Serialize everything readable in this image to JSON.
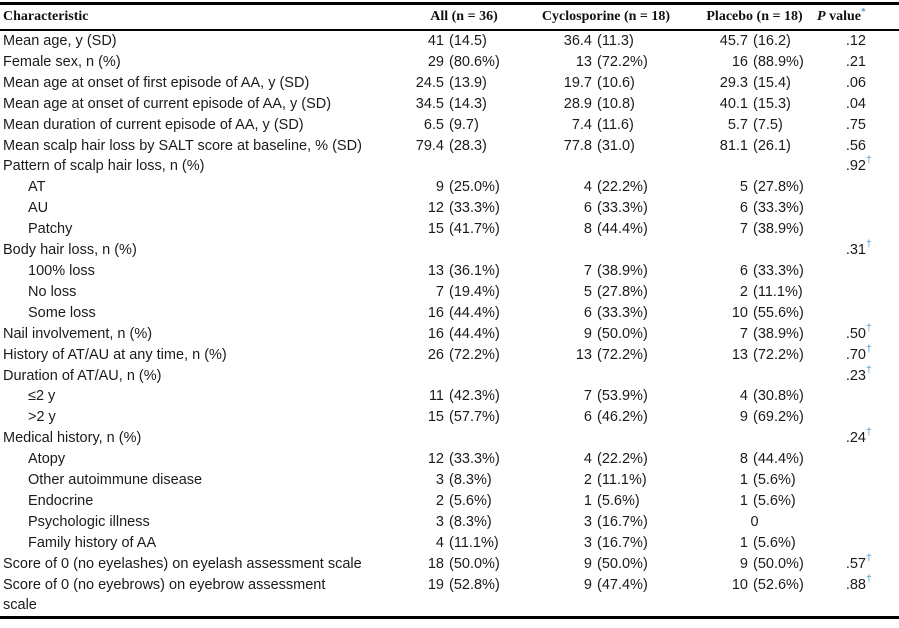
{
  "table": {
    "accent_color": "#4f9bce",
    "dagger_marker": "†",
    "header": {
      "characteristic": "Characteristic",
      "all": "All (n = 36)",
      "cyclosporine": "Cyclosporine (n = 18)",
      "placebo": "Placebo (n = 18)",
      "p_label_italic": "P",
      "p_label_rest": " value",
      "p_footnote_marker": "*"
    },
    "rows": [
      {
        "label": "Mean age, y (SD)",
        "indent": 0,
        "all": [
          "41",
          "(14.5)"
        ],
        "cyclo": [
          "36.4",
          "(11.3)"
        ],
        "placebo": [
          "45.7",
          "(16.2)"
        ],
        "p": ".12",
        "dagger": false
      },
      {
        "label": "Female sex, n (%)",
        "indent": 0,
        "all": [
          "29",
          "(80.6%)"
        ],
        "cyclo": [
          "13",
          "(72.2%)"
        ],
        "placebo": [
          "16",
          "(88.9%)"
        ],
        "p": ".21",
        "dagger": false
      },
      {
        "label": "Mean age at onset of first episode of AA, y (SD)",
        "indent": 0,
        "all": [
          "24.5",
          "(13.9)"
        ],
        "cyclo": [
          "19.7",
          "(10.6)"
        ],
        "placebo": [
          "29.3",
          "(15.4)"
        ],
        "p": ".06",
        "dagger": false
      },
      {
        "label": "Mean age at onset of current episode of AA, y (SD)",
        "indent": 0,
        "all": [
          "34.5",
          "(14.3)"
        ],
        "cyclo": [
          "28.9",
          "(10.8)"
        ],
        "placebo": [
          "40.1",
          "(15.3)"
        ],
        "p": ".04",
        "dagger": false
      },
      {
        "label": "Mean duration of current episode of AA, y (SD)",
        "indent": 0,
        "all": [
          "6.5",
          "(9.7)"
        ],
        "cyclo": [
          "7.4",
          "(11.6)"
        ],
        "placebo": [
          "5.7",
          "(7.5)"
        ],
        "p": ".75",
        "dagger": false
      },
      {
        "label": "Mean scalp hair loss by SALT score at baseline, % (SD)",
        "indent": 0,
        "all": [
          "79.4",
          "(28.3)"
        ],
        "cyclo": [
          "77.8",
          "(31.0)"
        ],
        "placebo": [
          "81.1",
          "(26.1)"
        ],
        "p": ".56",
        "dagger": false
      },
      {
        "label": "Pattern of scalp hair loss, n (%)",
        "indent": 0,
        "all": [
          "",
          ""
        ],
        "cyclo": [
          "",
          ""
        ],
        "placebo": [
          "",
          ""
        ],
        "p": ".92",
        "dagger": true
      },
      {
        "label": "AT",
        "indent": 1,
        "all": [
          "9",
          "(25.0%)"
        ],
        "cyclo": [
          "4",
          "(22.2%)"
        ],
        "placebo": [
          "5",
          "(27.8%)"
        ],
        "p": "",
        "dagger": false
      },
      {
        "label": "AU",
        "indent": 1,
        "all": [
          "12",
          "(33.3%)"
        ],
        "cyclo": [
          "6",
          "(33.3%)"
        ],
        "placebo": [
          "6",
          "(33.3%)"
        ],
        "p": "",
        "dagger": false
      },
      {
        "label": "Patchy",
        "indent": 1,
        "all": [
          "15",
          "(41.7%)"
        ],
        "cyclo": [
          "8",
          "(44.4%)"
        ],
        "placebo": [
          "7",
          "(38.9%)"
        ],
        "p": "",
        "dagger": false
      },
      {
        "label": "Body hair loss, n (%)",
        "indent": 0,
        "all": [
          "",
          ""
        ],
        "cyclo": [
          "",
          ""
        ],
        "placebo": [
          "",
          ""
        ],
        "p": ".31",
        "dagger": true
      },
      {
        "label": "100% loss",
        "indent": 1,
        "all": [
          "13",
          "(36.1%)"
        ],
        "cyclo": [
          "7",
          "(38.9%)"
        ],
        "placebo": [
          "6",
          "(33.3%)"
        ],
        "p": "",
        "dagger": false
      },
      {
        "label": "No loss",
        "indent": 1,
        "all": [
          "7",
          "(19.4%)"
        ],
        "cyclo": [
          "5",
          "(27.8%)"
        ],
        "placebo": [
          "2",
          "(11.1%)"
        ],
        "p": "",
        "dagger": false
      },
      {
        "label": "Some loss",
        "indent": 1,
        "all": [
          "16",
          "(44.4%)"
        ],
        "cyclo": [
          "6",
          "(33.3%)"
        ],
        "placebo": [
          "10",
          "(55.6%)"
        ],
        "p": "",
        "dagger": false
      },
      {
        "label": "Nail involvement, n (%)",
        "indent": 0,
        "all": [
          "16",
          "(44.4%)"
        ],
        "cyclo": [
          "9",
          "(50.0%)"
        ],
        "placebo": [
          "7",
          "(38.9%)"
        ],
        "p": ".50",
        "dagger": true
      },
      {
        "label": "History of AT/AU at any time, n (%)",
        "indent": 0,
        "all": [
          "26",
          "(72.2%)"
        ],
        "cyclo": [
          "13",
          "(72.2%)"
        ],
        "placebo": [
          "13",
          "(72.2%)"
        ],
        "p": ".70",
        "dagger": true
      },
      {
        "label": "Duration of AT/AU, n (%)",
        "indent": 0,
        "all": [
          "",
          ""
        ],
        "cyclo": [
          "",
          ""
        ],
        "placebo": [
          "",
          ""
        ],
        "p": ".23",
        "dagger": true
      },
      {
        "label": "≤2 y",
        "indent": 1,
        "all": [
          "11",
          "(42.3%)"
        ],
        "cyclo": [
          "7",
          "(53.9%)"
        ],
        "placebo": [
          "4",
          "(30.8%)"
        ],
        "p": "",
        "dagger": false
      },
      {
        "label": ">2 y",
        "indent": 1,
        "all": [
          "15",
          "(57.7%)"
        ],
        "cyclo": [
          "6",
          "(46.2%)"
        ],
        "placebo": [
          "9",
          "(69.2%)"
        ],
        "p": "",
        "dagger": false
      },
      {
        "label": "Medical history, n (%)",
        "indent": 0,
        "all": [
          "",
          ""
        ],
        "cyclo": [
          "",
          ""
        ],
        "placebo": [
          "",
          ""
        ],
        "p": ".24",
        "dagger": true
      },
      {
        "label": "Atopy",
        "indent": 1,
        "all": [
          "12",
          "(33.3%)"
        ],
        "cyclo": [
          "4",
          "(22.2%)"
        ],
        "placebo": [
          "8",
          "(44.4%)"
        ],
        "p": "",
        "dagger": false
      },
      {
        "label": "Other autoimmune disease",
        "indent": 1,
        "all": [
          "3",
          "(8.3%)"
        ],
        "cyclo": [
          "2",
          "(11.1%)"
        ],
        "placebo": [
          "1",
          "(5.6%)"
        ],
        "p": "",
        "dagger": false
      },
      {
        "label": "Endocrine",
        "indent": 1,
        "all": [
          "2",
          "(5.6%)"
        ],
        "cyclo": [
          "1",
          "(5.6%)"
        ],
        "placebo": [
          "1",
          "(5.6%)"
        ],
        "p": "",
        "dagger": false
      },
      {
        "label": "Psychologic illness",
        "indent": 1,
        "all": [
          "3",
          "(8.3%)"
        ],
        "cyclo": [
          "3",
          "(16.7%)"
        ],
        "placebo": [
          "0",
          ""
        ],
        "p": "",
        "dagger": false
      },
      {
        "label": "Family history of AA",
        "indent": 1,
        "all": [
          "4",
          "(11.1%)"
        ],
        "cyclo": [
          "3",
          "(16.7%)"
        ],
        "placebo": [
          "1",
          "(5.6%)"
        ],
        "p": "",
        "dagger": false
      },
      {
        "label": "Score of 0 (no eyelashes) on eyelash assessment scale",
        "indent": 0,
        "all": [
          "18",
          "(50.0%)"
        ],
        "cyclo": [
          "9",
          "(50.0%)"
        ],
        "placebo": [
          "9",
          "(50.0%)"
        ],
        "p": ".57",
        "dagger": true
      },
      {
        "label": "Score of 0 (no eyebrows) on eyebrow assessment scale",
        "indent": 0,
        "all": [
          "19",
          "(52.8%)"
        ],
        "cyclo": [
          "9",
          "(47.4%)"
        ],
        "placebo": [
          "10",
          "(52.6%)"
        ],
        "p": ".88",
        "dagger": true
      }
    ]
  }
}
